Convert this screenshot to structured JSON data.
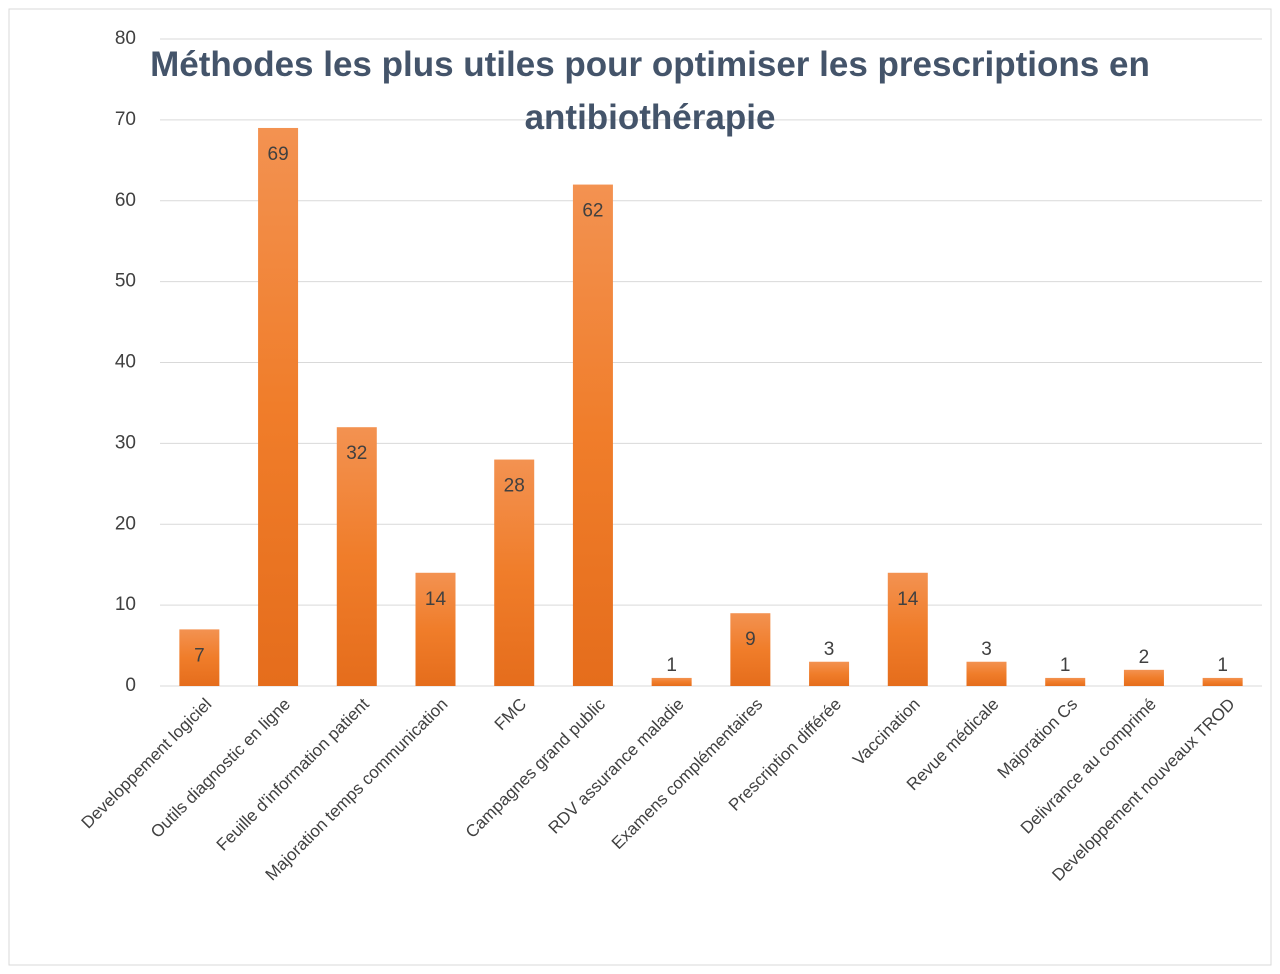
{
  "chart_data": {
    "type": "bar",
    "title": "Méthodes les plus utiles pour optimiser les prescriptions en antibiothérapie",
    "categories": [
      "Developpement logiciel",
      "Outils diagnostic en ligne",
      "Feuille d'information patient",
      "Majoration temps communication",
      "FMC",
      "Campagnes grand public",
      "RDV assurance maladie",
      "Examens complémentaires",
      "Prescription différée",
      "Vaccination",
      "Revue médicale",
      "Majoration Cs",
      "Delivrance au comprimé",
      "Developpement nouveaux TROD"
    ],
    "values": [
      7,
      69,
      32,
      14,
      28,
      62,
      1,
      9,
      3,
      14,
      3,
      1,
      2,
      1
    ],
    "color": "#ee7b2c",
    "ylim": [
      0,
      80
    ],
    "yticks": [
      0,
      10,
      20,
      30,
      40,
      50,
      60,
      70,
      80
    ],
    "grid": true
  }
}
